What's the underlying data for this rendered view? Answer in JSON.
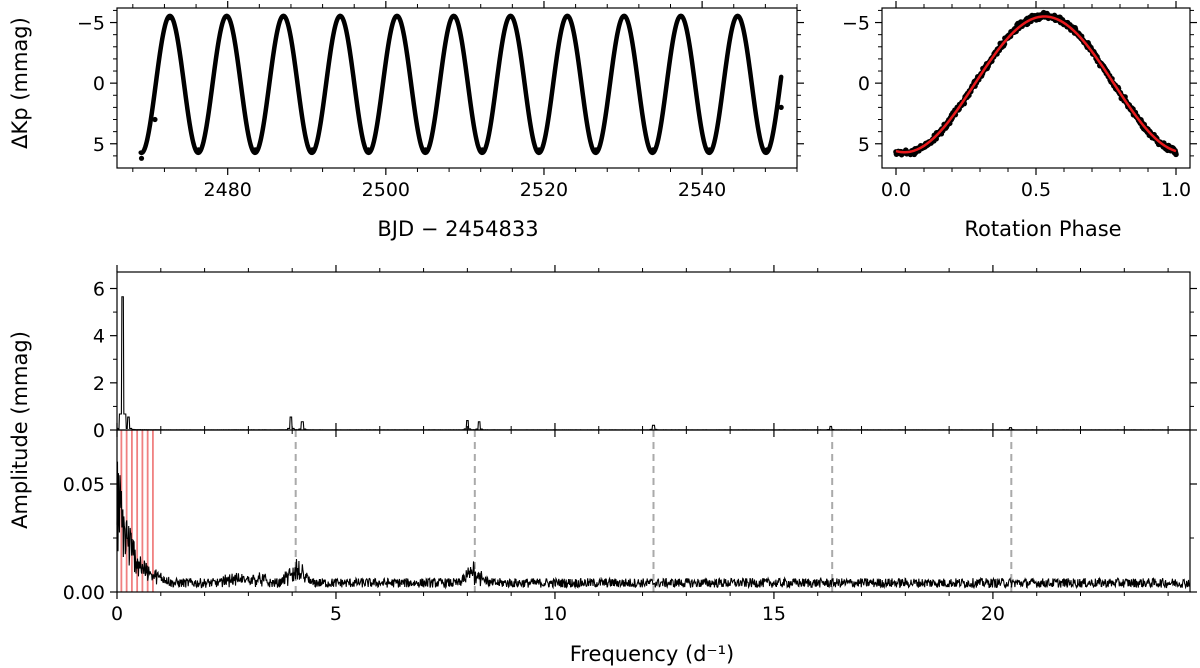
{
  "chart_data": [
    {
      "id": "light-curve",
      "type": "scatter",
      "xlabel": "BJD − 2454833",
      "ylabel": "ΔKp (mmag)",
      "xlim": [
        2466,
        2552
      ],
      "ylim": [
        7,
        -6.2
      ],
      "y_inverted": true,
      "xticks": [
        "2480",
        "2500",
        "2520",
        "2540"
      ],
      "xtick_values": [
        2480,
        2500,
        2520,
        2540
      ],
      "yticks": [
        "−5",
        "0",
        "5"
      ],
      "ytick_values": [
        -5,
        0,
        5
      ],
      "series": [
        {
          "color": "#000000",
          "x_range": [
            2469,
            2550
          ],
          "period_days": 7.18,
          "mean": 0.1,
          "amplitude": 5.65,
          "first_minimum_x": 2469.1,
          "points": [
            [
              2469.1,
              6.2
            ],
            [
              2470.8,
              3.0
            ],
            [
              2472.7,
              -5.4
            ],
            [
              2476.3,
              5.5
            ],
            [
              2479.9,
              -5.5
            ],
            [
              2483.5,
              5.5
            ],
            [
              2487.1,
              -5.5
            ],
            [
              2490.7,
              5.5
            ],
            [
              2494.2,
              -5.5
            ],
            [
              2497.8,
              5.5
            ],
            [
              2501.4,
              -5.5
            ],
            [
              2505.0,
              5.5
            ],
            [
              2508.6,
              -5.5
            ],
            [
              2512.2,
              5.5
            ],
            [
              2515.8,
              -5.5
            ],
            [
              2519.4,
              5.5
            ],
            [
              2523.0,
              -5.5
            ],
            [
              2526.6,
              5.5
            ],
            [
              2530.2,
              -5.5
            ],
            [
              2533.8,
              5.5
            ],
            [
              2537.4,
              -5.5
            ],
            [
              2540.9,
              5.5
            ],
            [
              2544.5,
              -5.5
            ],
            [
              2548.2,
              5.5
            ],
            [
              2550.0,
              2.0
            ]
          ]
        }
      ]
    },
    {
      "id": "phase-curve",
      "type": "scatter",
      "xlabel": "Rotation Phase",
      "ylabel": "",
      "xlim": [
        -0.05,
        1.05
      ],
      "ylim": [
        7,
        -6.2
      ],
      "y_inverted": true,
      "xticks": [
        "0.0",
        "0.5",
        "1.0"
      ],
      "xtick_values": [
        0,
        0.5,
        1
      ],
      "yticks": [
        "−5",
        "0",
        "5"
      ],
      "ytick_values": [
        -5,
        0,
        5
      ],
      "series": [
        {
          "color": "#000000",
          "kind": "points",
          "phase_of_maximum": 0.53,
          "mean": 0.1,
          "amplitude": 5.65
        },
        {
          "color": "#e8191c",
          "kind": "fit-line",
          "phase_of_maximum": 0.53,
          "mean": 0.1,
          "amplitude": 5.6
        }
      ]
    },
    {
      "id": "amplitude-spectrum",
      "type": "line",
      "xlabel": "Frequency (d⁻¹)",
      "ylabel": "Amplitude (mmag)",
      "xlim": [
        0,
        24.5
      ],
      "xticks": [
        "0",
        "5",
        "10",
        "15",
        "20"
      ],
      "xtick_values": [
        0,
        5,
        10,
        15,
        20
      ],
      "upper_panel": {
        "ylim": [
          0,
          6.7
        ],
        "yticks": [
          "0",
          "2",
          "4",
          "6"
        ],
        "ytick_values": [
          0,
          2,
          4,
          6
        ],
        "peaks": [
          {
            "frequency": 0.13,
            "amplitude": 5.65
          },
          {
            "frequency": 0.26,
            "amplitude": 0.55
          },
          {
            "frequency": 3.97,
            "amplitude": 0.55
          },
          {
            "frequency": 4.23,
            "amplitude": 0.35
          },
          {
            "frequency": 8.0,
            "amplitude": 0.4
          },
          {
            "frequency": 8.27,
            "amplitude": 0.35
          },
          {
            "frequency": 12.25,
            "amplitude": 0.2
          },
          {
            "frequency": 16.3,
            "amplitude": 0.15
          },
          {
            "frequency": 20.4,
            "amplitude": 0.1
          }
        ]
      },
      "lower_panel": {
        "ylim": [
          0,
          0.075
        ],
        "yticks": [
          "0.00",
          "0.05"
        ],
        "ytick_values": [
          0,
          0.05
        ],
        "noise_level": 0.004,
        "harmonic_lines": {
          "color": "#aaaaaa",
          "style": "dashed",
          "frequencies": [
            4.08,
            8.17,
            12.25,
            16.33,
            20.42
          ]
        },
        "low_frequency_lines": {
          "color": "#f08080",
          "frequencies": [
            0.1,
            0.22,
            0.34,
            0.46,
            0.58,
            0.7,
            0.82
          ]
        }
      }
    }
  ]
}
